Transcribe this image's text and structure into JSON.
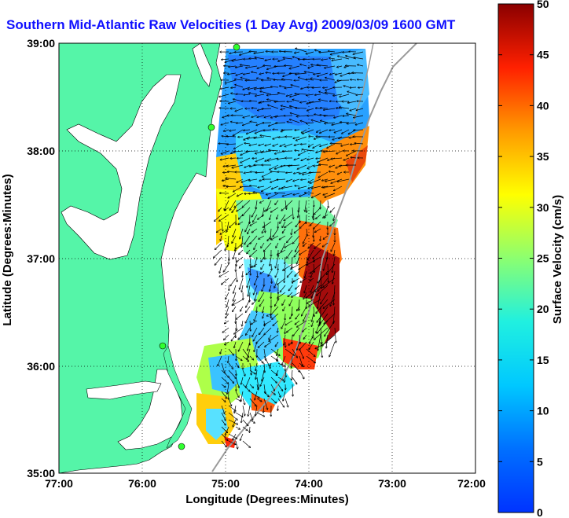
{
  "title": "Southern Mid-Atlantic Raw Velocities (1 Day Avg) 2009/03/09 1600 GMT",
  "map": {
    "x_axis_label": "Longitude (Degrees:Minutes)",
    "y_axis_label": "Latitude (Degrees:Minutes)",
    "x_ticks": [
      "77:00",
      "76:00",
      "75:00",
      "74:00",
      "73:00",
      "72:00"
    ],
    "y_ticks": [
      "39:00",
      "38:00",
      "37:00",
      "36:00",
      "35:00"
    ],
    "lon_range": [
      -77,
      -72
    ],
    "lat_range": [
      35,
      39
    ],
    "land_color": "#55f5a8",
    "grid": "dotted"
  },
  "colorbar": {
    "label": "Surface Velocity (cm/s)",
    "ticks": [
      "0",
      "5",
      "10",
      "15",
      "20",
      "25",
      "30",
      "35",
      "40",
      "45",
      "50"
    ],
    "range": [
      0,
      50
    ],
    "colormap": "jet"
  },
  "stations": [
    "station-1",
    "station-2",
    "station-3",
    "station-4"
  ]
}
